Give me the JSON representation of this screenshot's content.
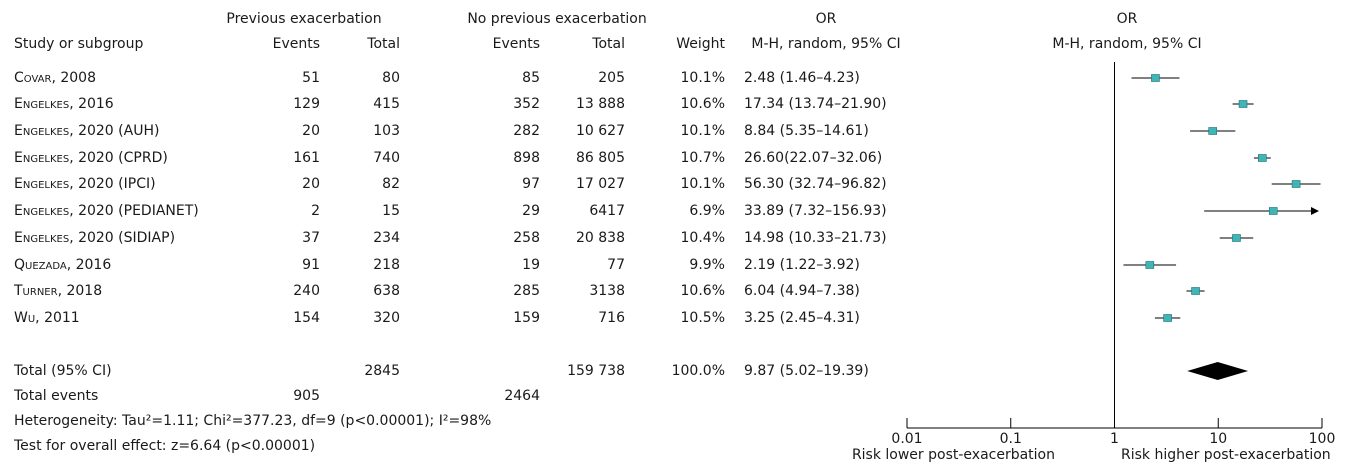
{
  "header": {
    "group1": "Previous exacerbation",
    "group2": "No previous exacerbation",
    "or_top_left": "OR",
    "or_top_right": "OR",
    "study": "Study or subgroup",
    "events1": "Events",
    "total1": "Total",
    "events2": "Events",
    "total2": "Total",
    "weight": "Weight",
    "method_left": "M-H, random, 95% CI",
    "method_right": "M-H, random, 95% CI"
  },
  "studies": [
    {
      "name": "Covar, 2008",
      "e1": "51",
      "t1": "80",
      "e2": "85",
      "t2": "205",
      "weight": "10.1%",
      "or_text": "2.48 (1.46–4.23)"
    },
    {
      "name": "Engelkes, 2016",
      "e1": "129",
      "t1": "415",
      "e2": "352",
      "t2": "13 888",
      "weight": "10.6%",
      "or_text": "17.34 (13.74–21.90)"
    },
    {
      "name": "Engelkes, 2020 (AUH)",
      "e1": "20",
      "t1": "103",
      "e2": "282",
      "t2": "10 627",
      "weight": "10.1%",
      "or_text": "8.84 (5.35–14.61)"
    },
    {
      "name": "Engelkes, 2020 (CPRD)",
      "e1": "161",
      "t1": "740",
      "e2": "898",
      "t2": "86 805",
      "weight": "10.7%",
      "or_text": "26.60(22.07–32.06)"
    },
    {
      "name": "Engelkes, 2020 (IPCI)",
      "e1": "20",
      "t1": "82",
      "e2": "97",
      "t2": "17 027",
      "weight": "10.1%",
      "or_text": "56.30 (32.74–96.82)"
    },
    {
      "name": "Engelkes, 2020 (PEDIANET)",
      "e1": "2",
      "t1": "15",
      "e2": "29",
      "t2": "6417",
      "weight": "6.9%",
      "or_text": "33.89 (7.32–156.93)"
    },
    {
      "name": "Engelkes, 2020 (SIDIAP)",
      "e1": "37",
      "t1": "234",
      "e2": "258",
      "t2": "20 838",
      "weight": "10.4%",
      "or_text": "14.98 (10.33–21.73)"
    },
    {
      "name": "Quezada, 2016",
      "e1": "91",
      "t1": "218",
      "e2": "19",
      "t2": "77",
      "weight": "9.9%",
      "or_text": "2.19 (1.22–3.92)"
    },
    {
      "name": "Turner, 2018",
      "e1": "240",
      "t1": "638",
      "e2": "285",
      "t2": "3138",
      "weight": "10.6%",
      "or_text": "6.04 (4.94–7.38)"
    },
    {
      "name": "Wu, 2011",
      "e1": "154",
      "t1": "320",
      "e2": "159",
      "t2": "716",
      "weight": "10.5%",
      "or_text": "3.25 (2.45–4.31)"
    }
  ],
  "total": {
    "label": "Total (95% CI)",
    "t1": "2845",
    "t2": "159 738",
    "weight": "100.0%",
    "or_text": "9.87 (5.02–19.39)"
  },
  "total_events": {
    "label": "Total events",
    "e1": "905",
    "e2": "2464"
  },
  "heterogeneity": "Heterogeneity: Tau²=1.11; Chi²=377.23, df=9 (p<0.00001); I²=98%",
  "overall_effect": "Test for overall effect: z=6.64 (p<0.00001)",
  "chart_data": {
    "type": "forest",
    "x_scale": "log",
    "xlim": [
      0.01,
      100
    ],
    "x_ticks": [
      0.01,
      0.1,
      1,
      10,
      100
    ],
    "x_tick_labels": [
      "0.01",
      "0.1",
      "1",
      "10",
      "100"
    ],
    "reference_line": 1,
    "xlabel_left": "Risk lower post-exacerbation",
    "xlabel_right": "Risk higher post-exacerbation",
    "marker_color": "#3fb5b8",
    "studies": [
      {
        "name": "Covar, 2008",
        "or": 2.48,
        "lo": 1.46,
        "hi": 4.23
      },
      {
        "name": "Engelkes, 2016",
        "or": 17.34,
        "lo": 13.74,
        "hi": 21.9
      },
      {
        "name": "Engelkes, 2020 (AUH)",
        "or": 8.84,
        "lo": 5.35,
        "hi": 14.61
      },
      {
        "name": "Engelkes, 2020 (CPRD)",
        "or": 26.6,
        "lo": 22.07,
        "hi": 32.06
      },
      {
        "name": "Engelkes, 2020 (IPCI)",
        "or": 56.3,
        "lo": 32.74,
        "hi": 96.82
      },
      {
        "name": "Engelkes, 2020 (PEDIANET)",
        "or": 33.89,
        "lo": 7.32,
        "hi": 156.93
      },
      {
        "name": "Engelkes, 2020 (SIDIAP)",
        "or": 14.98,
        "lo": 10.33,
        "hi": 21.73
      },
      {
        "name": "Quezada, 2016",
        "or": 2.19,
        "lo": 1.22,
        "hi": 3.92
      },
      {
        "name": "Turner, 2018",
        "or": 6.04,
        "lo": 4.94,
        "hi": 7.38
      },
      {
        "name": "Wu, 2011",
        "or": 3.25,
        "lo": 2.45,
        "hi": 4.31
      }
    ],
    "pooled": {
      "or": 9.87,
      "lo": 5.02,
      "hi": 19.39
    }
  }
}
